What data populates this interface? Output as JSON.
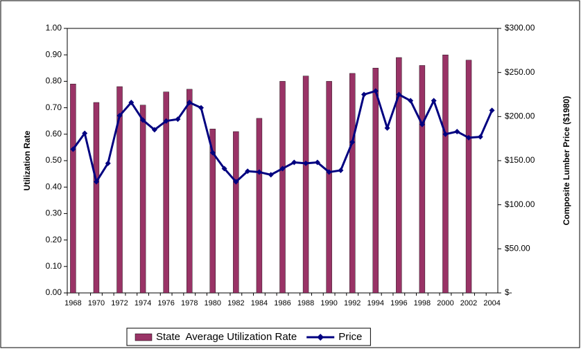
{
  "chart_data": {
    "type": "combo",
    "y_label": "Utilization Rate",
    "y2_label": "Composite Lumber Price ($1980)",
    "categories": [
      "1968",
      null,
      "1970",
      null,
      "1972",
      null,
      "1974",
      null,
      "1976",
      null,
      "1978",
      null,
      "1980",
      null,
      "1982",
      null,
      "1984",
      null,
      "1986",
      null,
      "1988",
      null,
      "1990",
      null,
      "1992",
      null,
      "1994",
      null,
      "1996",
      null,
      "1998",
      null,
      "2000",
      null,
      "2002",
      null,
      "2004"
    ],
    "series": [
      {
        "name": "State  Average Utilization Rate",
        "type": "bar",
        "color": "#993366",
        "axis": "y",
        "values": [
          0.79,
          null,
          0.72,
          null,
          0.78,
          null,
          0.71,
          null,
          0.76,
          null,
          0.77,
          null,
          0.62,
          null,
          0.61,
          null,
          0.66,
          null,
          0.8,
          null,
          0.82,
          null,
          0.8,
          null,
          0.83,
          null,
          0.85,
          null,
          0.89,
          null,
          0.86,
          null,
          0.9,
          null,
          0.88,
          null,
          null
        ]
      },
      {
        "name": "Price",
        "type": "line",
        "color": "#000080",
        "axis": "y2",
        "values": [
          163,
          181,
          126,
          147,
          201,
          216,
          196,
          185,
          195,
          197,
          216,
          210,
          159,
          141,
          126,
          138,
          137,
          134,
          141,
          148,
          147,
          148,
          137,
          139,
          171,
          225,
          229,
          187,
          225,
          218,
          191,
          218,
          180,
          183,
          176,
          177,
          207
        ]
      }
    ],
    "ylim": [
      0,
      1
    ],
    "yticks": [
      {
        "value": 0,
        "label": "0.00"
      },
      {
        "value": 0.1,
        "label": "0.10"
      },
      {
        "value": 0.2,
        "label": "0.20"
      },
      {
        "value": 0.3,
        "label": "0.30"
      },
      {
        "value": 0.4,
        "label": "0.40"
      },
      {
        "value": 0.5,
        "label": "0.50"
      },
      {
        "value": 0.6,
        "label": "0.60"
      },
      {
        "value": 0.7,
        "label": "0.70"
      },
      {
        "value": 0.8,
        "label": "0.80"
      },
      {
        "value": 0.9,
        "label": "0.90"
      },
      {
        "value": 1,
        "label": "1.00"
      }
    ],
    "y2lim": [
      0,
      300
    ],
    "y2ticks": [
      {
        "value": 0,
        "label": "$-"
      },
      {
        "value": 50,
        "label": "$50.00"
      },
      {
        "value": 100,
        "label": "$100.00"
      },
      {
        "value": 150,
        "label": "$150.00"
      },
      {
        "value": 200,
        "label": "$200.00"
      },
      {
        "value": 250,
        "label": "$250.00"
      },
      {
        "value": 300,
        "label": "$300.00"
      }
    ],
    "legend": "bottom"
  }
}
